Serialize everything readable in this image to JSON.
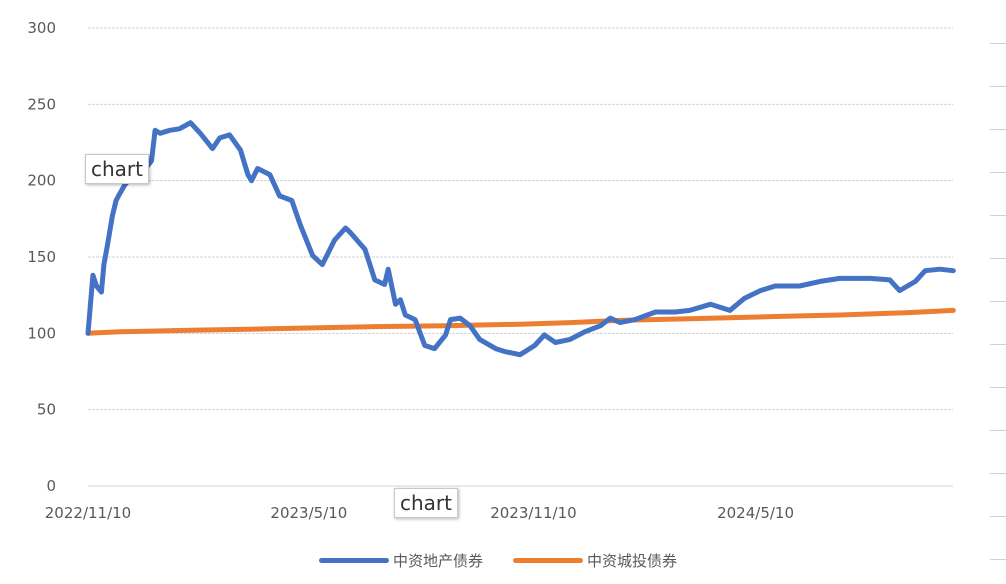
{
  "chart_data": {
    "type": "line",
    "title": "",
    "xlabel": "",
    "ylabel": "",
    "ylim": [
      0,
      300
    ],
    "yticks": [
      "0",
      "50",
      "100",
      "150",
      "200",
      "250",
      "300"
    ],
    "xticks": [
      "2022/11/10",
      "2023/5/10",
      "2023/11/10",
      "2024/5/10"
    ],
    "xlim": [
      "2022-11-10",
      "2024-10-19"
    ],
    "grid": true,
    "legend_position": "bottom",
    "series": [
      {
        "name": "中资地产债券",
        "color": "#4472C4",
        "points": [
          [
            "2022-11-10",
            100
          ],
          [
            "2022-11-14",
            138
          ],
          [
            "2022-11-17",
            131
          ],
          [
            "2022-11-21",
            127
          ],
          [
            "2022-11-23",
            145
          ],
          [
            "2022-11-26",
            158
          ],
          [
            "2022-11-30",
            177
          ],
          [
            "2022-12-03",
            187
          ],
          [
            "2022-12-05",
            190
          ],
          [
            "2022-12-10",
            197
          ],
          [
            "2022-12-17",
            204
          ],
          [
            "2022-12-27",
            208
          ],
          [
            "2023-01-01",
            213
          ],
          [
            "2023-01-04",
            233
          ],
          [
            "2023-01-08",
            231
          ],
          [
            "2023-01-16",
            233
          ],
          [
            "2023-01-24",
            234
          ],
          [
            "2023-02-02",
            238
          ],
          [
            "2023-02-10",
            231
          ],
          [
            "2023-02-20",
            221
          ],
          [
            "2023-02-26",
            228
          ],
          [
            "2023-03-06",
            230
          ],
          [
            "2023-03-15",
            220
          ],
          [
            "2023-03-21",
            204
          ],
          [
            "2023-03-24",
            200
          ],
          [
            "2023-03-29",
            208
          ],
          [
            "2023-04-08",
            204
          ],
          [
            "2023-04-16",
            190
          ],
          [
            "2023-04-26",
            187
          ],
          [
            "2023-05-03",
            171
          ],
          [
            "2023-05-13",
            151
          ],
          [
            "2023-05-21",
            145
          ],
          [
            "2023-05-31",
            161
          ],
          [
            "2023-06-09",
            169
          ],
          [
            "2023-06-13",
            166
          ],
          [
            "2023-06-25",
            155
          ],
          [
            "2023-07-03",
            135
          ],
          [
            "2023-07-11",
            132
          ],
          [
            "2023-07-14",
            142
          ],
          [
            "2023-07-20",
            119
          ],
          [
            "2023-07-24",
            122
          ],
          [
            "2023-07-28",
            112
          ],
          [
            "2023-08-05",
            109
          ],
          [
            "2023-08-13",
            92
          ],
          [
            "2023-08-21",
            90
          ],
          [
            "2023-08-30",
            99
          ],
          [
            "2023-09-03",
            109
          ],
          [
            "2023-09-11",
            110
          ],
          [
            "2023-09-19",
            105
          ],
          [
            "2023-09-27",
            96
          ],
          [
            "2023-10-10",
            90
          ],
          [
            "2023-10-18",
            88
          ],
          [
            "2023-10-30",
            86
          ],
          [
            "2023-11-11",
            92
          ],
          [
            "2023-11-19",
            99
          ],
          [
            "2023-11-28",
            94
          ],
          [
            "2023-12-10",
            96
          ],
          [
            "2023-12-22",
            101
          ],
          [
            "2024-01-04",
            105
          ],
          [
            "2024-01-12",
            110
          ],
          [
            "2024-01-20",
            107
          ],
          [
            "2024-02-01",
            109
          ],
          [
            "2024-02-18",
            114
          ],
          [
            "2024-03-05",
            114
          ],
          [
            "2024-03-17",
            115
          ],
          [
            "2024-04-03",
            119
          ],
          [
            "2024-04-19",
            115
          ],
          [
            "2024-05-01",
            123
          ],
          [
            "2024-05-14",
            128
          ],
          [
            "2024-05-26",
            131
          ],
          [
            "2024-06-15",
            131
          ],
          [
            "2024-07-02",
            134
          ],
          [
            "2024-07-18",
            136
          ],
          [
            "2024-08-12",
            136
          ],
          [
            "2024-08-28",
            135
          ],
          [
            "2024-09-05",
            128
          ],
          [
            "2024-09-18",
            134
          ],
          [
            "2024-09-26",
            141
          ],
          [
            "2024-10-08",
            142
          ],
          [
            "2024-10-19",
            141
          ]
        ]
      },
      {
        "name": "中资城投债券",
        "color": "#ED7D31",
        "points": [
          [
            "2022-11-10",
            100
          ],
          [
            "2022-12-06",
            101
          ],
          [
            "2023-02-02",
            102
          ],
          [
            "2023-04-08",
            103
          ],
          [
            "2023-07-11",
            104.5
          ],
          [
            "2023-08-30",
            105
          ],
          [
            "2023-10-30",
            106
          ],
          [
            "2023-12-10",
            107
          ],
          [
            "2024-01-20",
            108.5
          ],
          [
            "2024-03-17",
            109.5
          ],
          [
            "2024-05-26",
            111
          ],
          [
            "2024-07-18",
            112
          ],
          [
            "2024-09-10",
            113.5
          ],
          [
            "2024-10-19",
            115
          ]
        ]
      }
    ]
  },
  "overlays": {
    "tooltip_1": "chart",
    "tooltip_2": "chart"
  }
}
